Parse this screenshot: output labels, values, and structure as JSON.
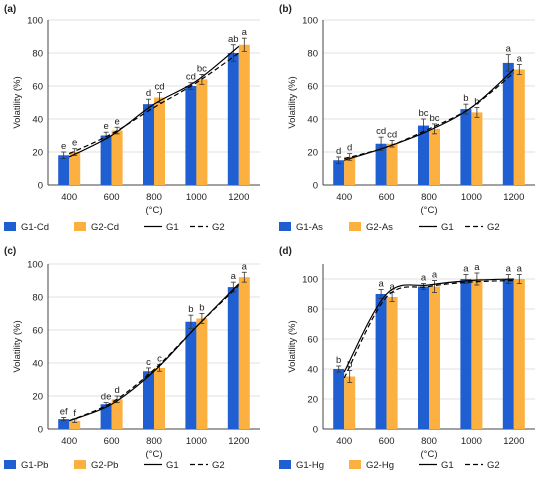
{
  "colors": {
    "g1": "#1f5fd1",
    "g2": "#fbb040",
    "axis": "#444444",
    "grid": "#d9d9d9",
    "line": "#000000"
  },
  "charts": [
    {
      "panel": "(a)",
      "chart_data": {
        "type": "bar",
        "categories": [
          "400",
          "600",
          "800",
          "1000",
          "1200"
        ],
        "xlabel_unit": "(°C)",
        "ylabel": "Volatility (%)",
        "ylim": [
          0,
          100
        ],
        "yticks": [
          0,
          20,
          40,
          60,
          80,
          100
        ],
        "grid": true,
        "legend_position": "bottom",
        "series": [
          {
            "name": "G1-Cd",
            "values": [
              18,
              30,
              49,
              60,
              80
            ],
            "errors": [
              2,
              2,
              3,
              2,
              5
            ],
            "labels": [
              "e",
              "e",
              "d",
              "cd",
              "ab"
            ]
          },
          {
            "name": "G2-Cd",
            "values": [
              20,
              33,
              53,
              64,
              85
            ],
            "errors": [
              2,
              2,
              3,
              3,
              4
            ],
            "labels": [
              "e",
              "e",
              "cd",
              "bc",
              "a"
            ]
          }
        ],
        "fit_lines": [
          {
            "name": "G1",
            "style": "solid",
            "values": [
              17,
              30,
              49,
              63,
              84
            ]
          },
          {
            "name": "G2",
            "style": "dashed",
            "values": [
              19,
              31,
              47,
              62,
              80
            ]
          }
        ]
      }
    },
    {
      "panel": "(b)",
      "chart_data": {
        "type": "bar",
        "categories": [
          "400",
          "600",
          "800",
          "1000",
          "1200"
        ],
        "xlabel_unit": "(°C)",
        "ylabel": "Volatility (%)",
        "ylim": [
          0,
          100
        ],
        "yticks": [
          0,
          20,
          40,
          60,
          80,
          100
        ],
        "grid": true,
        "legend_position": "bottom",
        "series": [
          {
            "name": "G1-As",
            "values": [
              15,
              25,
              36,
              46,
              74
            ],
            "errors": [
              2,
              4,
              4,
              3,
              5
            ],
            "labels": [
              "d",
              "cd",
              "bc",
              "b",
              "a"
            ]
          },
          {
            "name": "G2-As",
            "values": [
              17,
              25,
              34,
              44,
              70
            ],
            "errors": [
              2,
              2,
              3,
              3,
              3
            ],
            "labels": [
              "d",
              "cd",
              "bc",
              "b",
              "a"
            ]
          }
        ],
        "fit_lines": [
          {
            "name": "G1",
            "style": "solid",
            "values": [
              15,
              23,
              33,
              47,
              70
            ]
          },
          {
            "name": "G2",
            "style": "dashed",
            "values": [
              16,
              23,
              34,
              47,
              68
            ]
          }
        ]
      }
    },
    {
      "panel": "(c)",
      "chart_data": {
        "type": "bar",
        "categories": [
          "400",
          "600",
          "800",
          "1000",
          "1200"
        ],
        "xlabel_unit": "(°C)",
        "ylabel": "Volatility (%)",
        "ylim": [
          0,
          100
        ],
        "yticks": [
          0,
          20,
          40,
          60,
          80,
          100
        ],
        "grid": true,
        "legend_position": "bottom",
        "series": [
          {
            "name": "G1-Pb",
            "values": [
              6,
              15,
              35,
              65,
              86
            ],
            "errors": [
              1,
              1,
              2,
              4,
              3
            ],
            "labels": [
              "ef",
              "de",
              "c",
              "b",
              "a"
            ]
          },
          {
            "name": "G2-Pb",
            "values": [
              5,
              18,
              37,
              67,
              92
            ],
            "errors": [
              1,
              2,
              2,
              3,
              3
            ],
            "labels": [
              "f",
              "d",
              "c",
              "b",
              "a"
            ]
          }
        ],
        "fit_lines": [
          {
            "name": "G1",
            "style": "solid",
            "values": [
              5,
              15,
              35,
              62,
              88
            ]
          },
          {
            "name": "G2",
            "style": "dashed",
            "values": [
              5,
              16,
              36,
              62,
              87
            ]
          }
        ]
      }
    },
    {
      "panel": "(d)",
      "chart_data": {
        "type": "bar",
        "categories": [
          "400",
          "600",
          "800",
          "1000",
          "1200"
        ],
        "xlabel_unit": "(°C)",
        "ylabel": "Volatility (%)",
        "ylim": [
          0,
          110
        ],
        "yticks": [
          0,
          20,
          40,
          60,
          80,
          100
        ],
        "grid": true,
        "legend_position": "bottom",
        "series": [
          {
            "name": "G1-Hg",
            "values": [
              40,
              90,
              95,
              100,
              100
            ],
            "errors": [
              2,
              3,
              2,
              3,
              3
            ],
            "labels": [
              "b",
              "a",
              "a",
              "a",
              "a"
            ]
          },
          {
            "name": "G2-Hg",
            "values": [
              35,
              88,
              95,
              100,
              100
            ],
            "errors": [
              4,
              3,
              4,
              4,
              3
            ],
            "labels": [
              "b",
              "a",
              "a",
              "a",
              "a"
            ]
          }
        ],
        "fit_lines": [
          {
            "name": "G1",
            "style": "solid",
            "values": [
              38,
              90,
              96,
              99,
              100
            ]
          },
          {
            "name": "G2",
            "style": "dashed",
            "values": [
              34,
              88,
              95,
              98,
              99
            ]
          }
        ]
      }
    }
  ],
  "legend_line_labels": [
    "G1",
    "G2"
  ]
}
